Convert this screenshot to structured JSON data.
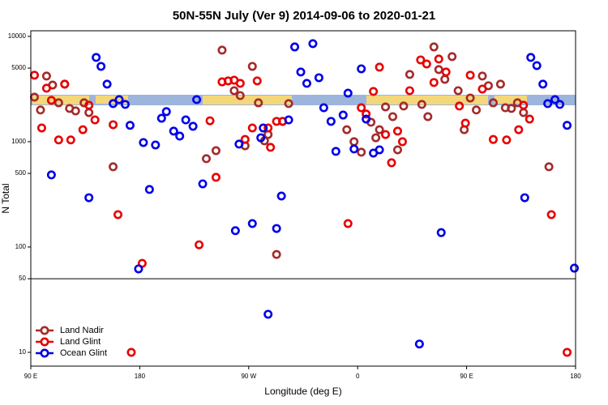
{
  "chart_data": {
    "type": "scatter",
    "title": "50N-55N July (Ver 9)   2014-09-06 to 2020-01-21",
    "x_label": "Longitude (deg E)",
    "y_label": "N Total",
    "log_y": true,
    "xlim": [
      90,
      540
    ],
    "ylim": [
      7.4,
      11300
    ],
    "xticks": [
      {
        "value": 90,
        "label": "90 E"
      },
      {
        "value": 180,
        "label": "180"
      },
      {
        "value": 270,
        "label": "90 W"
      },
      {
        "value": 360,
        "label": "0"
      },
      {
        "value": 450,
        "label": "90 E"
      },
      {
        "value": 540,
        "label": "180"
      }
    ],
    "yticks": [
      10,
      50,
      100,
      500,
      1000,
      5000,
      10000
    ],
    "reference_line": 50,
    "legend": "bottom-left",
    "series": [
      {
        "name": "Land Nadir",
        "color": "#a52a2a",
        "x": [
          93,
          98,
          103,
          108,
          113,
          118,
          122,
          127,
          134,
          138,
          158,
          235,
          243,
          248,
          258,
          263,
          267,
          273,
          278,
          283,
          286,
          293,
          298,
          303,
          351,
          357,
          363,
          371,
          375,
          378,
          383,
          389,
          393,
          398,
          403,
          413,
          418,
          423,
          427,
          432,
          438,
          443,
          448,
          453,
          458,
          463,
          468,
          472,
          478,
          482,
          487,
          492,
          497,
          518
        ],
        "values": [
          2650,
          2000,
          4200,
          3450,
          2340,
          3520,
          2070,
          1960,
          2340,
          1890,
          578,
          690,
          822,
          7400,
          3050,
          2740,
          915,
          5190,
          2340,
          1020,
          1170,
          85,
          1560,
          2300,
          1300,
          1000,
          795,
          1530,
          1090,
          1300,
          2140,
          1730,
          837,
          2180,
          4350,
          2260,
          1730,
          7940,
          4840,
          3910,
          6430,
          3050,
          1300,
          2600,
          2000,
          4200,
          3400,
          2340,
          3520,
          2100,
          2070,
          2340,
          1890,
          578
        ]
      },
      {
        "name": "Land Glint",
        "color": "#e80000",
        "x": [
          93,
          99,
          103,
          107,
          113,
          118,
          123,
          133,
          138,
          143,
          158,
          162,
          173,
          182,
          229,
          238,
          243,
          248,
          253,
          258,
          263,
          267,
          273,
          277,
          286,
          288,
          293,
          298,
          352,
          363,
          367,
          373,
          378,
          383,
          388,
          393,
          397,
          403,
          412,
          417,
          423,
          427,
          433,
          444,
          449,
          453,
          463,
          472,
          483,
          493,
          497,
          502,
          520,
          533
        ],
        "values": [
          4280,
          1350,
          3220,
          2470,
          1040,
          3520,
          1040,
          1300,
          2220,
          1610,
          1450,
          203,
          10,
          70,
          105,
          1580,
          459,
          3700,
          3780,
          3840,
          3580,
          1050,
          1350,
          3780,
          1350,
          884,
          1560,
          1560,
          167,
          2100,
          1830,
          3000,
          5100,
          1170,
          631,
          1260,
          1000,
          3050,
          5980,
          5470,
          3650,
          6090,
          4590,
          2180,
          1500,
          4280,
          3160,
          1050,
          1040,
          1300,
          2220,
          1640,
          203,
          10
        ]
      },
      {
        "name": "Ocean Glint",
        "color": "#0000e8",
        "x": [
          107,
          138,
          144,
          148,
          153,
          158,
          163,
          168,
          172,
          179,
          183,
          188,
          193,
          198,
          202,
          208,
          213,
          218,
          224,
          227,
          232,
          259,
          262,
          273,
          280,
          282,
          286,
          293,
          297,
          303,
          308,
          313,
          318,
          323,
          328,
          332,
          338,
          342,
          348,
          352,
          357,
          363,
          367,
          373,
          378,
          411,
          429,
          498,
          503,
          508,
          513,
          517,
          523,
          527,
          533,
          539
        ],
        "values": [
          484,
          294,
          6310,
          5190,
          3520,
          2300,
          2510,
          2260,
          1430,
          62,
          982,
          352,
          931,
          1670,
          1930,
          1260,
          1130,
          1610,
          1400,
          2510,
          398,
          143,
          949,
          167,
          1090,
          1350,
          23,
          150,
          305,
          1610,
          7940,
          4590,
          3580,
          8530,
          4050,
          2100,
          1560,
          809,
          1790,
          2890,
          853,
          4920,
          1640,
          780,
          837,
          12,
          137,
          294,
          6310,
          5280,
          3520,
          2300,
          2510,
          2260,
          1430,
          63
        ]
      }
    ]
  }
}
